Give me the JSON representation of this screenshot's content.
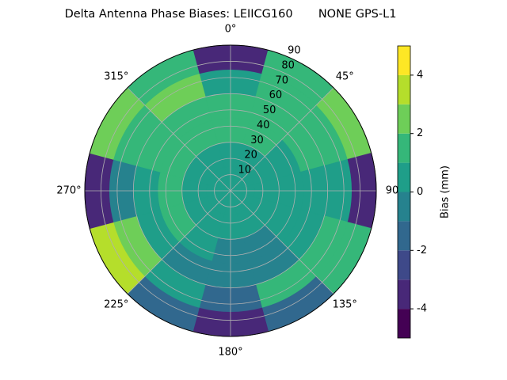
{
  "chart_data": {
    "type": "polar_contour",
    "title": "Delta Antenna Phase Biases: LEIICG160       NONE GPS-L1",
    "theta": [
      0,
      30,
      60,
      90,
      120,
      150,
      180,
      210,
      240,
      270,
      300,
      330
    ],
    "r_bins": [
      0,
      15,
      30,
      45,
      60,
      75,
      90
    ],
    "z": [
      [
        0.3,
        0.3,
        0.3,
        0.3,
        0.3,
        0.3,
        0.3,
        0.3,
        0.3,
        0.3,
        0.3,
        0.3
      ],
      [
        0.5,
        0.5,
        0.5,
        0.5,
        0.5,
        0.5,
        0.5,
        0.5,
        0.5,
        0.5,
        0.5,
        0.5
      ],
      [
        1,
        1,
        0.5,
        0,
        0,
        -0.5,
        -0.5,
        0,
        1,
        1,
        1,
        1
      ],
      [
        1.5,
        1.5,
        1,
        0,
        0.5,
        -0.5,
        -1,
        -0.5,
        0.5,
        0,
        1.5,
        1
      ],
      [
        0.5,
        1.5,
        1.5,
        0,
        1.5,
        1,
        -1.5,
        0.5,
        2,
        -1,
        1.5,
        2
      ],
      [
        -3.5,
        1,
        2.5,
        -4,
        1,
        -1.5,
        -3.5,
        -1.5,
        3.5,
        -3.5,
        2.5,
        1
      ]
    ],
    "rlim": [
      0,
      90
    ],
    "rticks": [
      10,
      20,
      30,
      40,
      50,
      60,
      70,
      80,
      90
    ],
    "thetaticks": [
      {
        "value": 0,
        "label": "0°"
      },
      {
        "value": 45,
        "label": "45°"
      },
      {
        "value": 90,
        "label": "90"
      },
      {
        "value": 135,
        "label": "135°"
      },
      {
        "value": 180,
        "label": "180°"
      },
      {
        "value": 225,
        "label": "225°"
      },
      {
        "value": 270,
        "label": "270°"
      },
      {
        "value": 315,
        "label": "315°"
      }
    ],
    "levels": [
      -5,
      -4,
      -3,
      -2,
      -1,
      0,
      1,
      2,
      3,
      4,
      5
    ],
    "colors": [
      "#440154",
      "#482878",
      "#3e4989",
      "#31688e",
      "#26828e",
      "#1f9e89",
      "#35b779",
      "#6ece58",
      "#b5de2b",
      "#fde725"
    ],
    "cbar_ticks": [
      -4,
      -2,
      0,
      2,
      4
    ],
    "cbar_label": "Bias (mm)",
    "grid": true
  }
}
